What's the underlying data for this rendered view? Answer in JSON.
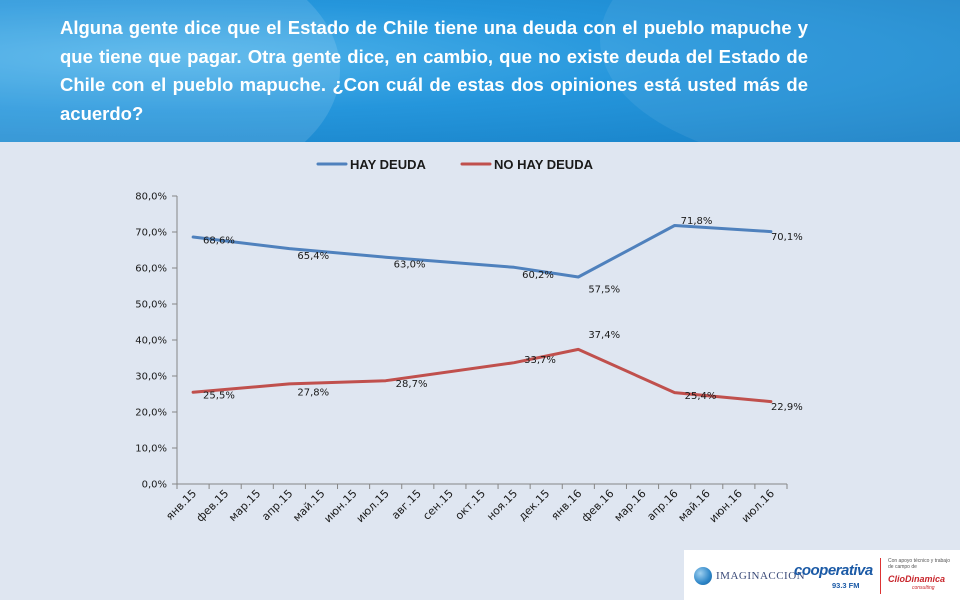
{
  "question": "Alguna gente dice que el Estado de Chile tiene una deuda con el pueblo mapuche y que tiene que pagar. Otra gente dice, en cambio, que no existe deuda del Estado de Chile con el pueblo mapuche. ¿Con cuál de estas dos opiniones está usted más de acuerdo?",
  "chart_data": {
    "type": "line",
    "categories": [
      "янв.15",
      "фев.15",
      "мар.15",
      "апр.15",
      "май.15",
      "июн.15",
      "июл.15",
      "авг.15",
      "сен.15",
      "окт.15",
      "ноя.15",
      "дек.15",
      "янв.16",
      "фев.16",
      "мар.16",
      "апр.16",
      "май.16",
      "июн.16",
      "июл.16"
    ],
    "yticks": [
      "0,0%",
      "10,0%",
      "20,0%",
      "30,0%",
      "40,0%",
      "50,0%",
      "60,0%",
      "70,0%",
      "80,0%"
    ],
    "ylim": [
      0,
      80
    ],
    "legend_position": "top",
    "series": [
      {
        "name": "HAY DEUDA",
        "color": "#4f81bd",
        "points": [
          {
            "x": 0,
            "y": 68.6,
            "label": "68,6%"
          },
          {
            "x": 3,
            "y": 65.4,
            "label": "65,4%"
          },
          {
            "x": 6,
            "y": 63.0,
            "label": "63,0%"
          },
          {
            "x": 10,
            "y": 60.2,
            "label": "60,2%"
          },
          {
            "x": 12,
            "y": 57.5,
            "label": "57,5%"
          },
          {
            "x": 15,
            "y": 71.8,
            "label": "71,8%"
          },
          {
            "x": 18,
            "y": 70.1,
            "label": "70,1%"
          }
        ]
      },
      {
        "name": "NO HAY DEUDA",
        "color": "#c0504d",
        "points": [
          {
            "x": 0,
            "y": 25.5,
            "label": "25,5%"
          },
          {
            "x": 3,
            "y": 27.8,
            "label": "27,8%"
          },
          {
            "x": 6,
            "y": 28.7,
            "label": "28,7%"
          },
          {
            "x": 10,
            "y": 33.7,
            "label": "33,7%"
          },
          {
            "x": 12,
            "y": 37.4,
            "label": "37,4%"
          },
          {
            "x": 15,
            "y": 25.4,
            "label": "25,4%"
          },
          {
            "x": 18,
            "y": 22.9,
            "label": "22,9%"
          }
        ]
      }
    ]
  },
  "logos": {
    "imaginaccion": "IMAGINACCION",
    "cooperativa": "cooperativa",
    "cooperativa_freq": "93.3 FM",
    "clio_caption": "Con apoyo técnico y trabajo de campo de",
    "cliodinamica": "ClioDinamica",
    "clio_sub": "consulting"
  }
}
